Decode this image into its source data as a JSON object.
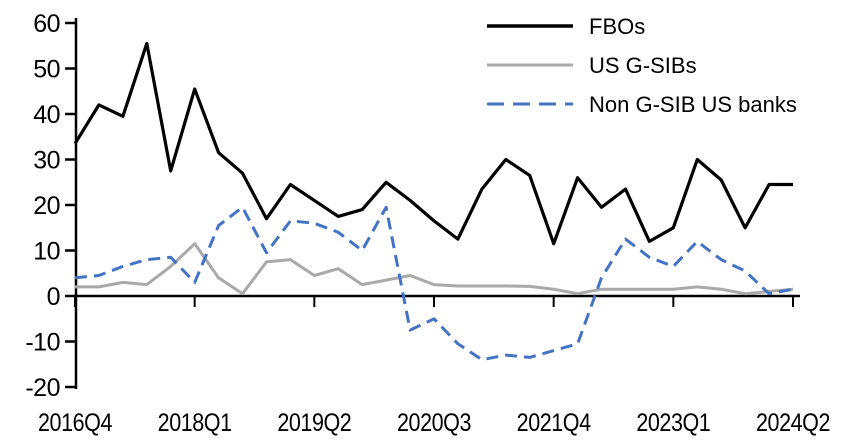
{
  "chart_data": {
    "type": "line",
    "title": "",
    "xlabel": "",
    "ylabel": "",
    "ylim": [
      -20,
      60
    ],
    "y_ticks": [
      "60",
      "50",
      "40",
      "30",
      "20",
      "10",
      "0",
      "-10",
      "-20"
    ],
    "y_tick_values": [
      60,
      50,
      40,
      30,
      20,
      10,
      0,
      -10,
      -20
    ],
    "grid": false,
    "legend_position": "top-right",
    "x_categories": [
      "2016Q4",
      "2017Q1",
      "2017Q2",
      "2017Q3",
      "2017Q4",
      "2018Q1",
      "2018Q2",
      "2018Q3",
      "2018Q4",
      "2019Q1",
      "2019Q2",
      "2019Q3",
      "2019Q4",
      "2020Q1",
      "2020Q2",
      "2020Q3",
      "2020Q4",
      "2021Q1",
      "2021Q2",
      "2021Q3",
      "2021Q4",
      "2022Q1",
      "2022Q2",
      "2022Q3",
      "2022Q4",
      "2023Q1",
      "2023Q2",
      "2023Q3",
      "2023Q4",
      "2024Q1",
      "2024Q2"
    ],
    "x_tick_labels": [
      "2016Q4",
      "2018Q1",
      "2019Q2",
      "2020Q3",
      "2021Q4",
      "2023Q1",
      "2024Q2"
    ],
    "x_tick_indices": [
      0,
      5,
      10,
      15,
      20,
      25,
      30
    ],
    "series": [
      {
        "name": "FBOs",
        "color": "#000000",
        "style": "solid",
        "values": [
          33.5,
          42,
          39.5,
          55.5,
          27.5,
          45.5,
          31.5,
          27,
          17,
          24.5,
          21,
          17.5,
          19,
          25,
          21,
          16.5,
          12.5,
          23.5,
          30,
          26.5,
          11.5,
          26,
          19.5,
          23.5,
          12,
          15,
          30,
          25.5,
          15,
          24.5,
          24.5
        ]
      },
      {
        "name": "US G-SIBs",
        "color": "#a9a9a9",
        "style": "solid",
        "values": [
          2,
          2,
          3,
          2.5,
          6.5,
          11.5,
          4,
          0.5,
          7.5,
          8,
          4.5,
          6,
          2.5,
          3.5,
          4.5,
          2.5,
          2.2,
          2.2,
          2.2,
          2.1,
          1.5,
          0.5,
          1.5,
          1.5,
          1.5,
          1.5,
          2,
          1.5,
          0.5,
          1,
          1.5
        ]
      },
      {
        "name": "Non G-SIB US banks",
        "color": "#4472c4",
        "style": "dashed",
        "values": [
          4,
          4.5,
          6.5,
          8,
          8.5,
          3,
          15.5,
          19.5,
          9.5,
          16.5,
          16,
          14,
          10,
          19.5,
          -7.5,
          -5,
          -10.5,
          -14,
          -13,
          -13.5,
          -12,
          -10.5,
          4,
          12.5,
          8.5,
          6.5,
          12,
          8,
          5.5,
          0.5,
          1.5
        ]
      }
    ]
  }
}
